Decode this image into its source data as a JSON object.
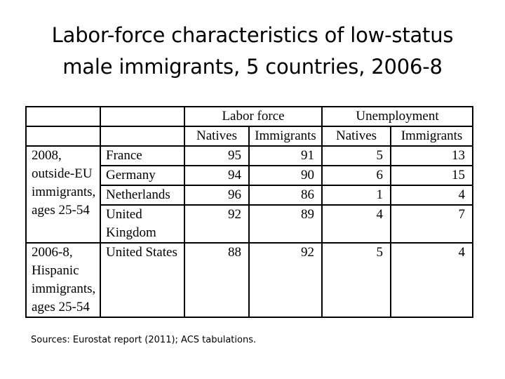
{
  "title": {
    "line1": "Labor-force characteristics of low-status",
    "line2": "male immigrants, 5 countries, 2006-8"
  },
  "table": {
    "group_headers": [
      "Labor force",
      "Unemployment"
    ],
    "sub_headers": [
      "Natives",
      "Immigrants",
      "Natives",
      "Immigrants"
    ],
    "groups": [
      {
        "label_lines": [
          "2008,",
          "outside-EU",
          "immigrants,",
          "ages 25-54"
        ],
        "rows": [
          {
            "country": "France",
            "lf_natives": "95",
            "lf_immigrants": "91",
            "un_natives": "5",
            "un_immigrants": "13"
          },
          {
            "country": "Germany",
            "lf_natives": "94",
            "lf_immigrants": "90",
            "un_natives": "6",
            "un_immigrants": "15"
          },
          {
            "country": "Netherlands",
            "lf_natives": "96",
            "lf_immigrants": "86",
            "un_natives": "1",
            "un_immigrants": "4"
          },
          {
            "country_lines": [
              "United",
              "Kingdom"
            ],
            "lf_natives": "92",
            "lf_immigrants": "89",
            "un_natives": "4",
            "un_immigrants": "7"
          }
        ]
      },
      {
        "label_lines": [
          "2006-8,",
          "Hispanic",
          "immigrants,",
          "ages 25-54"
        ],
        "rows": [
          {
            "country": "United States",
            "lf_natives": "88",
            "lf_immigrants": "92",
            "un_natives": "5",
            "un_immigrants": "4"
          }
        ]
      }
    ]
  },
  "sources": "Sources:  Eurostat report (2011); ACS tabulations."
}
